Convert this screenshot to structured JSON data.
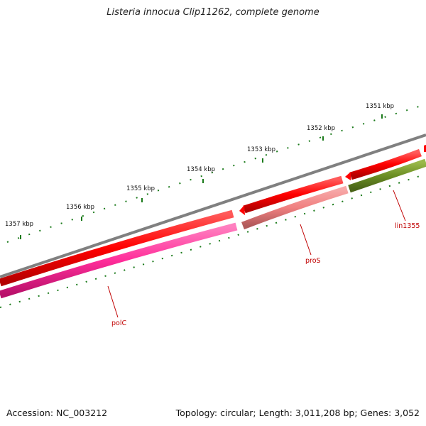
{
  "title": "Listeria innocua Clip11262, complete genome",
  "footer": {
    "accession": "Accession: NC_003212",
    "summary": "Topology: circular; Length: 3,011,208 bp; Genes: 3,052"
  },
  "ticks": [
    "1351 kbp",
    "1352 kbp",
    "1353 kbp",
    "1354 kbp",
    "1355 kbp",
    "1356 kbp",
    "1357 kbp"
  ],
  "genes": [
    {
      "label": "polC",
      "color": "#ff3fa0",
      "strand": "reverse-track"
    },
    {
      "label": "proS",
      "color": "#f08080",
      "strand": "reverse-track"
    },
    {
      "label": "lin1355",
      "color": "#6b8e23",
      "strand": "reverse-track"
    }
  ],
  "colors": {
    "backbone": "#808080",
    "forward_cds": "#ff0000",
    "tick": "#1a7a1a",
    "label": "#c00000"
  }
}
